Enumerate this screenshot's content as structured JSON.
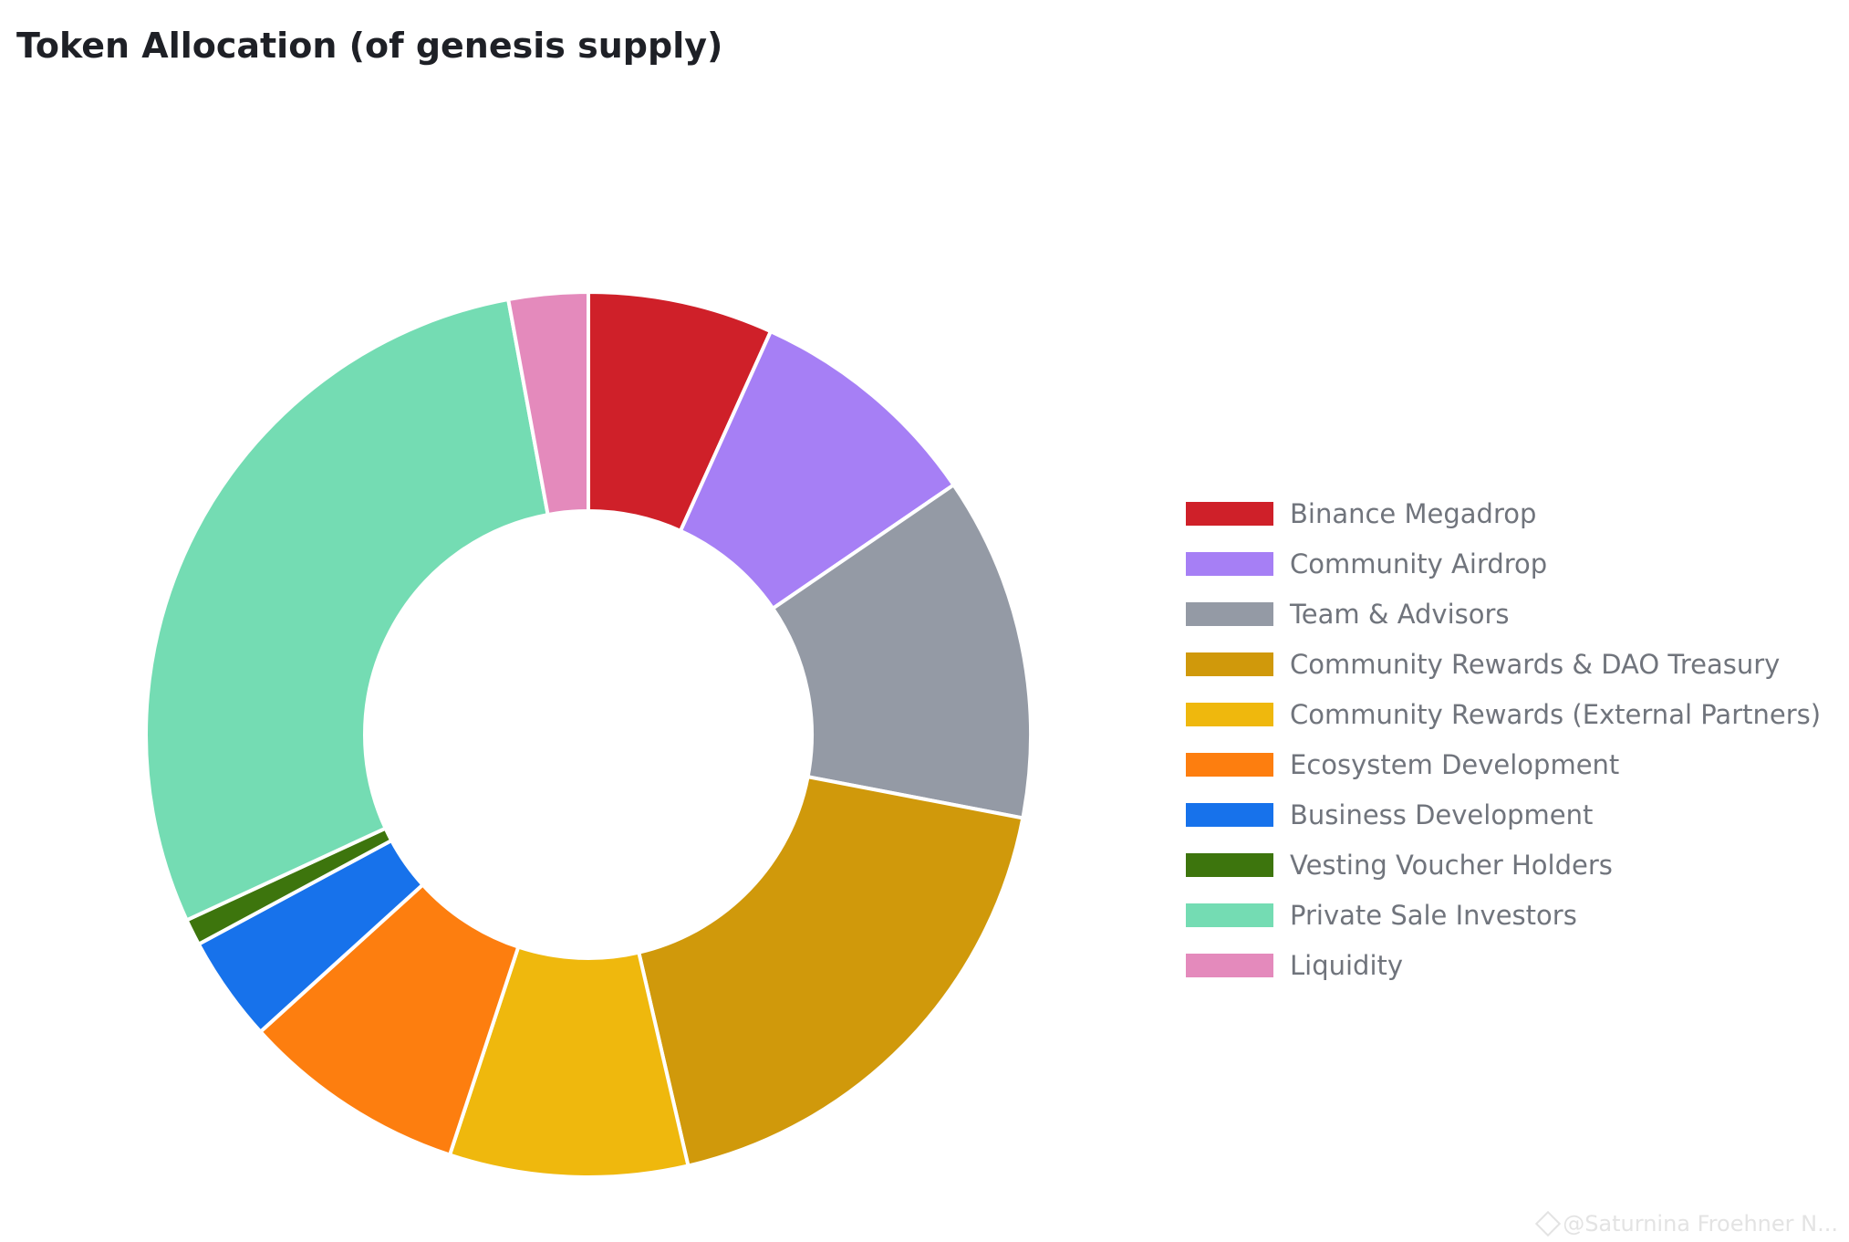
{
  "chart_data": {
    "type": "pie",
    "title": "Token Allocation (of genesis supply)",
    "categories": [
      "Binance Megadrop",
      "Community Airdrop",
      "Team & Advisors",
      "Community Rewards & DAO Treasury",
      "Community Rewards (External Partners)",
      "Ecosystem Development",
      "Business Development",
      "Vesting Voucher Holders",
      "Private Sale Investors",
      "Liquidity"
    ],
    "values": [
      7,
      9,
      13,
      19,
      9,
      8.5,
      4,
      1,
      30,
      3
    ],
    "colors": [
      "#cf2029",
      "#a67ff5",
      "#949aa5",
      "#d0990b",
      "#efb80d",
      "#fd7e0f",
      "#1772eb",
      "#3d750d",
      "#74dcb3",
      "#e48abc"
    ],
    "legend_position": "right",
    "donut": true
  },
  "watermark": {
    "text": "@Saturnina Froehner N...",
    "icon": "binance-logo-icon"
  }
}
